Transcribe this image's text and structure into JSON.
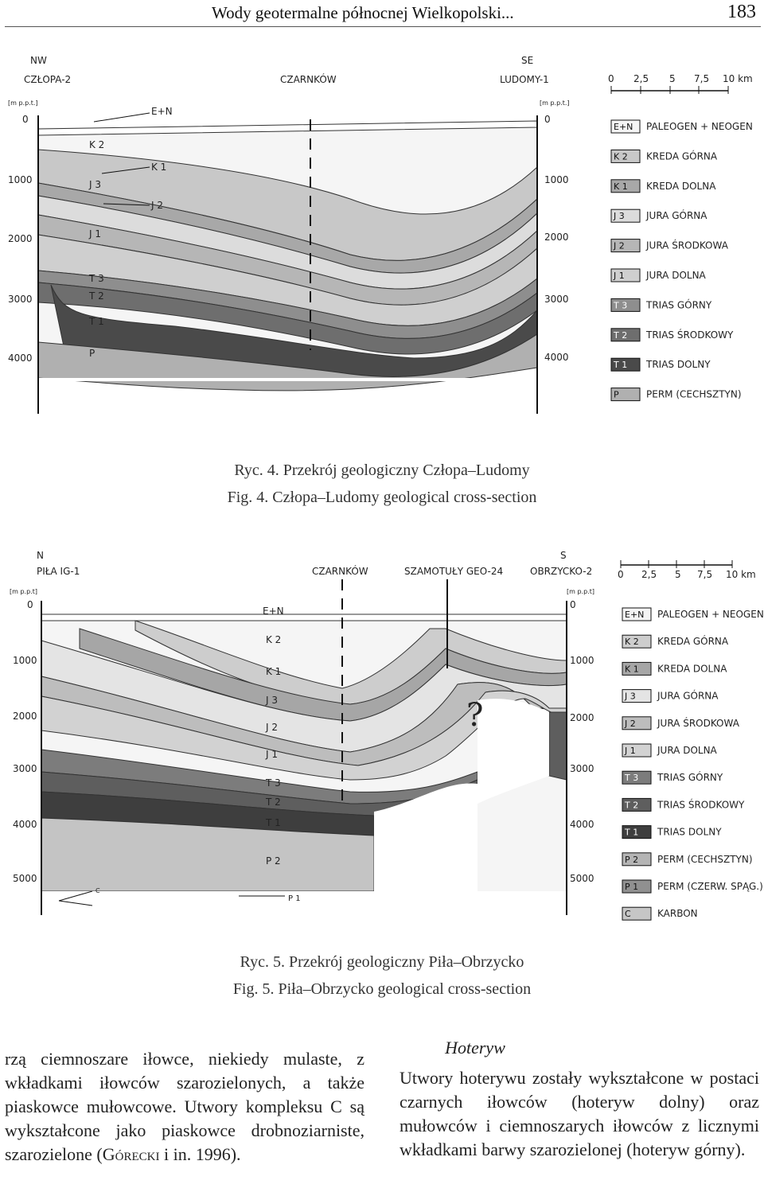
{
  "header": {
    "title": "Wody geotermalne północnej Wielkopolski...",
    "page": "183"
  },
  "fig4": {
    "dir_left": "NW",
    "well_left": "CZŁOPA-2",
    "dir_right": "SE",
    "well_right": "LUDOMY-1",
    "center_label": "CZARNKÓW",
    "depth_unit": "[m p.p.t.]",
    "depth_ticks": [
      "0",
      "1000",
      "2000",
      "3000",
      "4000"
    ],
    "layer_labels": {
      "en": "E+N",
      "k2": "K 2",
      "k1": "K 1",
      "j3": "J 3",
      "j2": "J 2",
      "j1": "J 1",
      "t3": "T 3",
      "t2": "T 2",
      "t1": "T 1",
      "p": "P"
    },
    "scale": [
      "0",
      "2,5",
      "5",
      "7,5",
      "10 km"
    ],
    "legend": [
      {
        "code": "E+N",
        "name": "PALEOGEN + NEOGEN",
        "color": "#f4f4f4"
      },
      {
        "code": "K 2",
        "name": "KREDA GÓRNA",
        "color": "#c8c8c8"
      },
      {
        "code": "K 1",
        "name": "KREDA DOLNA",
        "color": "#a8a8a8"
      },
      {
        "code": "J 3",
        "name": "JURA GÓRNA",
        "color": "#dcdcdc"
      },
      {
        "code": "J 2",
        "name": "JURA ŚRODKOWA",
        "color": "#b6b6b6"
      },
      {
        "code": "J 1",
        "name": "JURA DOLNA",
        "color": "#cfcfcf"
      },
      {
        "code": "T 3",
        "name": "TRIAS GÓRNY",
        "color": "#8e8e8e"
      },
      {
        "code": "T 2",
        "name": "TRIAS ŚRODKOWY",
        "color": "#6e6e6e"
      },
      {
        "code": "T 1",
        "name": "TRIAS DOLNY",
        "color": "#4a4a4a"
      },
      {
        "code": "P",
        "name": "PERM (CECHSZTYN)",
        "color": "#b0b0b0"
      }
    ],
    "caption_pl": "Ryc. 4. Przekrój geologiczny Człopa–Ludomy",
    "caption_en": "Fig. 4. Człopa–Ludomy geological cross-section"
  },
  "fig5": {
    "dir_left": "N",
    "well_left": "PIŁA IG-1",
    "dir_right": "S",
    "well_right": "OBRZYCKO-2",
    "well_center1": "CZARNKÓW",
    "well_center2": "SZAMOTUŁY GEO-24",
    "depth_unit": "[m p.p.t]",
    "depth_ticks": [
      "0",
      "1000",
      "2000",
      "3000",
      "4000",
      "5000"
    ],
    "layer_labels": {
      "en": "E+N",
      "k2": "K 2",
      "k1": "K 1",
      "j3": "J 3",
      "j2": "J 2",
      "j1": "J 1",
      "t3": "T 3",
      "t2": "T 2",
      "t1": "T 1",
      "p2": "P 2",
      "p1": "P 1",
      "c": "C",
      "q": "?"
    },
    "scale": [
      "0",
      "2,5",
      "5",
      "7,5",
      "10 km"
    ],
    "legend": [
      {
        "code": "E+N",
        "name": "PALEOGEN + NEOGEN",
        "color": "#f4f4f4"
      },
      {
        "code": "K 2",
        "name": "KREDA GÓRNA",
        "color": "#cdcdcd"
      },
      {
        "code": "K 1",
        "name": "KREDA DOLNA",
        "color": "#a6a6a6"
      },
      {
        "code": "J 3",
        "name": "JURA GÓRNA",
        "color": "#e4e4e4"
      },
      {
        "code": "J 2",
        "name": "JURA ŚRODKOWA",
        "color": "#bdbdbd"
      },
      {
        "code": "J 1",
        "name": "JURA DOLNA",
        "color": "#d2d2d2"
      },
      {
        "code": "T 3",
        "name": "TRIAS GÓRNY",
        "color": "#7c7c7c"
      },
      {
        "code": "T 2",
        "name": "TRIAS ŚRODKOWY",
        "color": "#5e5e5e"
      },
      {
        "code": "T 1",
        "name": "TRIAS DOLNY",
        "color": "#3e3e3e"
      },
      {
        "code": "P 2",
        "name": "PERM (CECHSZTYN)",
        "color": "#b4b4b4"
      },
      {
        "code": "P 1",
        "name": "PERM (CZERW. SPĄG.)",
        "color": "#909090"
      },
      {
        "code": "C",
        "name": "KARBON",
        "color": "#c6c6c6"
      }
    ],
    "caption_pl": "Ryc. 5. Przekrój geologiczny Piła–Obrzycko",
    "caption_en": "Fig. 5. Piła–Obrzycko geological cross-section"
  },
  "text": {
    "left_a": "rzą ciemnoszare iłowce, niekiedy mulaste, z wkładkami iłowców szarozielonych, a także piaskowce mułowcowe. Utwory kompleksu C są wykształcone jako piaskowce drobnoziarniste, szarozielone (",
    "left_author": "Górecki",
    "left_b": " i in. 1996).",
    "right_heading": "Hoteryw",
    "right_body": "Utwory hoterywu zostały wykształcone w postaci czarnych iłowców (hoteryw dolny) oraz mułowców i ciemnoszarych iłowców z licznymi wkładkami barwy szarozielonej (hoteryw górny)."
  }
}
